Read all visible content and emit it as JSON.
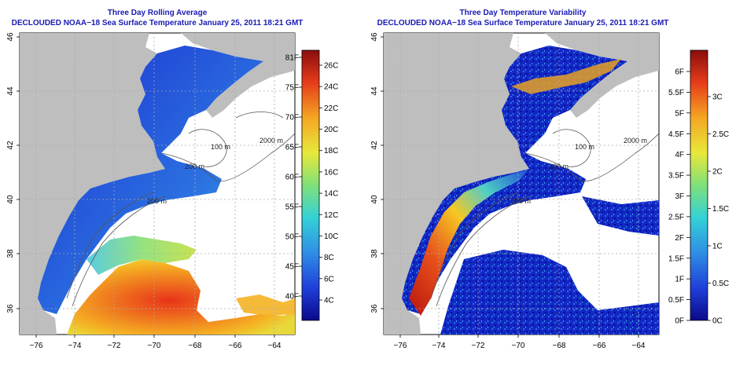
{
  "colors": {
    "land": "#bebebe",
    "ocean_nodata": "#ffffff",
    "title_blue": "#1a1ab4",
    "gridline": "#aaaaaa",
    "isobath": "#555555"
  },
  "panels": [
    {
      "id": "avg",
      "title_line1": "Three Day Rolling Average",
      "title_line2": "DECLOUDED NOAA−18 Sea Surface Temperature January 25, 2011 18:21 GMT",
      "colorbar_left_labels": [
        "81F",
        "75F",
        "70F",
        "65F",
        "60F",
        "55F",
        "50F",
        "45F",
        "40F"
      ],
      "colorbar_right_labels": [
        "26C",
        "24C",
        "22C",
        "20C",
        "18C",
        "16C",
        "14C",
        "12C",
        "10C",
        "8C",
        "6C",
        "4C"
      ],
      "isobath_labels": [
        "100 m",
        "200 m",
        "2000 m",
        "200 m"
      ]
    },
    {
      "id": "var",
      "title_line1": "Three Day Temperature Variability",
      "title_line2": "DECLOUDED NOAA−18 Sea Surface Temperature January 25, 2011 18:21 GMT",
      "colorbar_left_labels": [
        "6F",
        "5.5F",
        "5F",
        "4.5F",
        "4F",
        "3.5F",
        "3F",
        "2.5F",
        "2F",
        "1.5F",
        "1F",
        "0.5F",
        "0F"
      ],
      "colorbar_right_labels": [
        "3C",
        "2.5C",
        "2C",
        "1.5C",
        "1C",
        "0.5C",
        "0C"
      ],
      "isobath_labels": [
        "100 m",
        "200 m",
        "2000 m",
        "200 m"
      ]
    }
  ],
  "map_axes": {
    "x_ticks": [
      "−76",
      "−74",
      "−72",
      "−70",
      "−68",
      "−66",
      "−64"
    ],
    "y_ticks": [
      "36",
      "38",
      "40",
      "42",
      "44",
      "46"
    ]
  }
}
